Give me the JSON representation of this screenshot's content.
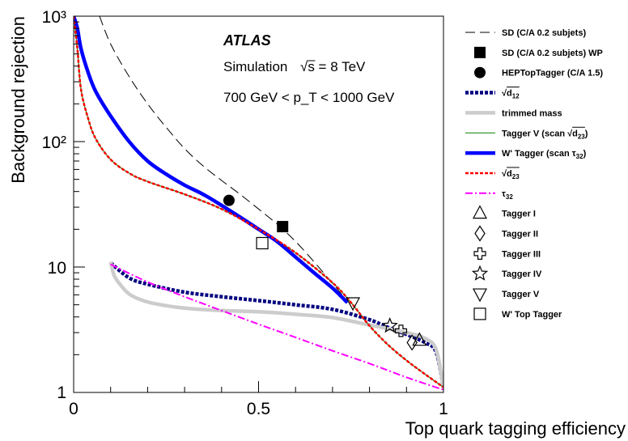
{
  "chart_data": {
    "type": "line",
    "xlabel": "Top quark tagging efficiency",
    "ylabel": "Background rejection",
    "xlim": [
      0,
      1
    ],
    "ylim": [
      1,
      1000
    ],
    "yscale": "log",
    "x_ticks": [
      "0",
      "0.5",
      "1"
    ],
    "y_ticks": [
      "1",
      "10",
      "10²",
      "10³"
    ],
    "grid": false,
    "legend_position": "right",
    "annotations": {
      "experiment": "ATLAS",
      "simulation": "Simulation",
      "energy": "√s = 8 TeV",
      "pt_range": "700 GeV < p_T < 1000 GeV"
    },
    "series": [
      {
        "name": "SD (C/A 0.2 subjets)",
        "color": "#000000",
        "style": "dashed",
        "x": [
          0.07,
          0.1,
          0.15,
          0.2,
          0.25,
          0.3,
          0.35,
          0.4,
          0.45,
          0.5,
          0.55,
          0.6,
          0.65,
          0.7,
          0.73
        ],
        "y": [
          1000,
          600,
          330,
          200,
          130,
          88,
          64,
          49,
          38,
          29,
          22,
          16,
          11,
          7.4,
          5.8
        ]
      },
      {
        "name": "SD (C/A 0.2 subjets) WP",
        "marker": "filled-square",
        "color": "#000000",
        "x": [
          0.565
        ],
        "y": [
          21
        ]
      },
      {
        "name": "HEPTopTagger (C/A 1.5)",
        "marker": "filled-circle",
        "color": "#000000",
        "x": [
          0.42
        ],
        "y": [
          34
        ]
      },
      {
        "name": "√d12",
        "color": "#000080",
        "style": "dotted-thick",
        "x": [
          0.1,
          0.15,
          0.2,
          0.3,
          0.4,
          0.5,
          0.6,
          0.7,
          0.8,
          0.85,
          0.9,
          0.95,
          0.98,
          1.0
        ],
        "y": [
          10.8,
          8.2,
          7.3,
          6.3,
          5.8,
          5.4,
          5.0,
          4.6,
          3.8,
          3.3,
          2.9,
          2.5,
          2.1,
          1.1
        ]
      },
      {
        "name": "trimmed mass",
        "color": "#cccccc",
        "style": "solid-thick",
        "x": [
          0.1,
          0.11,
          0.13,
          0.15,
          0.18,
          0.22,
          0.3,
          0.4,
          0.5,
          0.6,
          0.7,
          0.8,
          0.9,
          0.95,
          0.98,
          1.0
        ],
        "y": [
          11,
          8.5,
          7.0,
          6.1,
          5.5,
          5.1,
          4.7,
          4.5,
          4.4,
          4.2,
          3.95,
          3.45,
          3.0,
          2.7,
          2.2,
          1.1
        ]
      },
      {
        "name": "Tagger V (scan √d23)",
        "color": "#008000",
        "style": "solid-thin",
        "x": [
          0.0,
          0.01,
          0.02,
          0.04,
          0.06,
          0.1,
          0.15,
          0.2,
          0.3,
          0.4,
          0.5,
          0.6,
          0.7,
          0.75,
          0.8,
          0.85,
          0.9,
          0.95,
          1.0
        ],
        "y": [
          1000,
          550,
          260,
          150,
          105,
          72,
          56,
          48,
          38,
          29,
          20,
          13,
          7.5,
          5.2,
          3.4,
          2.4,
          1.8,
          1.4,
          1.1
        ]
      },
      {
        "name": "W' Tagger (scan τ32)",
        "color": "#0000ff",
        "style": "solid-thick",
        "x": [
          0.0,
          0.01,
          0.02,
          0.04,
          0.06,
          0.1,
          0.15,
          0.2,
          0.25,
          0.3,
          0.35,
          0.4,
          0.45,
          0.5,
          0.55,
          0.6,
          0.65,
          0.7,
          0.74
        ],
        "y": [
          1000,
          800,
          550,
          350,
          250,
          160,
          100,
          70,
          55,
          45,
          38,
          31,
          25,
          20,
          16,
          12,
          9,
          6.8,
          5.2
        ]
      },
      {
        "name": "√d23",
        "color": "#ff0000",
        "style": "dotted",
        "x": [
          0.0,
          0.01,
          0.02,
          0.04,
          0.06,
          0.1,
          0.15,
          0.2,
          0.3,
          0.4,
          0.5,
          0.6,
          0.7,
          0.75,
          0.8,
          0.85,
          0.9,
          0.95,
          1.0
        ],
        "y": [
          1000,
          550,
          260,
          150,
          105,
          72,
          56,
          48,
          38,
          29,
          20,
          13,
          7.5,
          5.2,
          3.4,
          2.4,
          1.8,
          1.4,
          1.1
        ]
      },
      {
        "name": "τ32",
        "color": "#ff00ff",
        "style": "dash-dot",
        "x": [
          0.1,
          0.2,
          0.3,
          0.4,
          0.5,
          0.6,
          0.7,
          0.8,
          0.9,
          1.0
        ],
        "y": [
          10.5,
          7.6,
          5.8,
          4.5,
          3.5,
          2.75,
          2.15,
          1.7,
          1.32,
          1.05
        ]
      },
      {
        "name": "Tagger I",
        "marker": "open-triangle-up",
        "color": "#000000",
        "x": [
          0.935
        ],
        "y": [
          2.6
        ]
      },
      {
        "name": "Tagger II",
        "marker": "open-diamond",
        "color": "#000000",
        "x": [
          0.915
        ],
        "y": [
          2.5
        ]
      },
      {
        "name": "Tagger III",
        "marker": "open-cross",
        "color": "#000000",
        "x": [
          0.885
        ],
        "y": [
          3.1
        ]
      },
      {
        "name": "Tagger IV",
        "marker": "open-star",
        "color": "#000000",
        "x": [
          0.855
        ],
        "y": [
          3.4
        ]
      },
      {
        "name": "Tagger V",
        "marker": "open-triangle-down",
        "color": "#000000",
        "x": [
          0.755
        ],
        "y": [
          5.2
        ]
      },
      {
        "name": "W' Top Tagger",
        "marker": "open-square",
        "color": "#000000",
        "x": [
          0.51
        ],
        "y": [
          15.5
        ]
      }
    ],
    "legend": [
      {
        "label": "SD (C/A 0.2 subjets)",
        "kind": "line",
        "series": 0
      },
      {
        "label": "SD (C/A 0.2 subjets) WP",
        "kind": "marker",
        "series": 1
      },
      {
        "label": "HEPTopTagger (C/A 1.5)",
        "kind": "marker",
        "series": 2
      },
      {
        "label": "√d",
        "sub": "12",
        "rad": true,
        "kind": "line",
        "series": 3
      },
      {
        "label": "trimmed mass",
        "kind": "line",
        "series": 4
      },
      {
        "label": "Tagger V (scan √d",
        "sub": "23",
        "rad": true,
        "suffix": ")",
        "kind": "line",
        "series": 5
      },
      {
        "label": "W' Tagger (scan τ",
        "sub": "32",
        "suffix": ")",
        "kind": "line",
        "series": 6
      },
      {
        "label": "√d",
        "sub": "23",
        "rad": true,
        "kind": "line",
        "series": 7
      },
      {
        "label": "τ",
        "sub": "32",
        "kind": "line",
        "series": 8
      },
      {
        "label": "Tagger I",
        "kind": "marker",
        "series": 9
      },
      {
        "label": "Tagger II",
        "kind": "marker",
        "series": 10
      },
      {
        "label": "Tagger III",
        "kind": "marker",
        "series": 11
      },
      {
        "label": "Tagger IV",
        "kind": "marker",
        "series": 12
      },
      {
        "label": "Tagger V",
        "kind": "marker",
        "series": 13
      },
      {
        "label": "W' Top Tagger",
        "kind": "marker",
        "series": 14
      }
    ]
  }
}
